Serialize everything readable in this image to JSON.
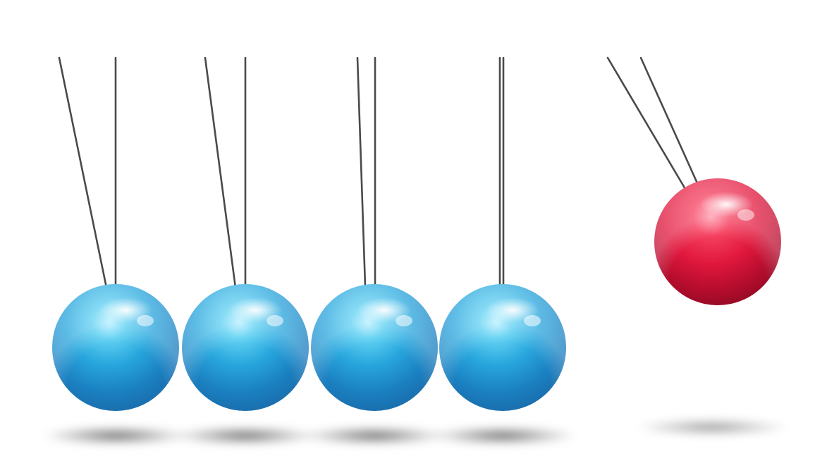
{
  "scene": {
    "subject": "newtons-cradle",
    "background_color": "#ffffff",
    "string_color": "#4a4a4a",
    "balls": [
      {
        "id": "ball-1",
        "color": "#2aa6dd",
        "state": "resting"
      },
      {
        "id": "ball-2",
        "color": "#2aa6dd",
        "state": "resting"
      },
      {
        "id": "ball-3",
        "color": "#2aa6dd",
        "state": "resting"
      },
      {
        "id": "ball-4",
        "color": "#2aa6dd",
        "state": "resting"
      },
      {
        "id": "ball-5",
        "color": "#e0173d",
        "state": "swinging"
      }
    ]
  }
}
